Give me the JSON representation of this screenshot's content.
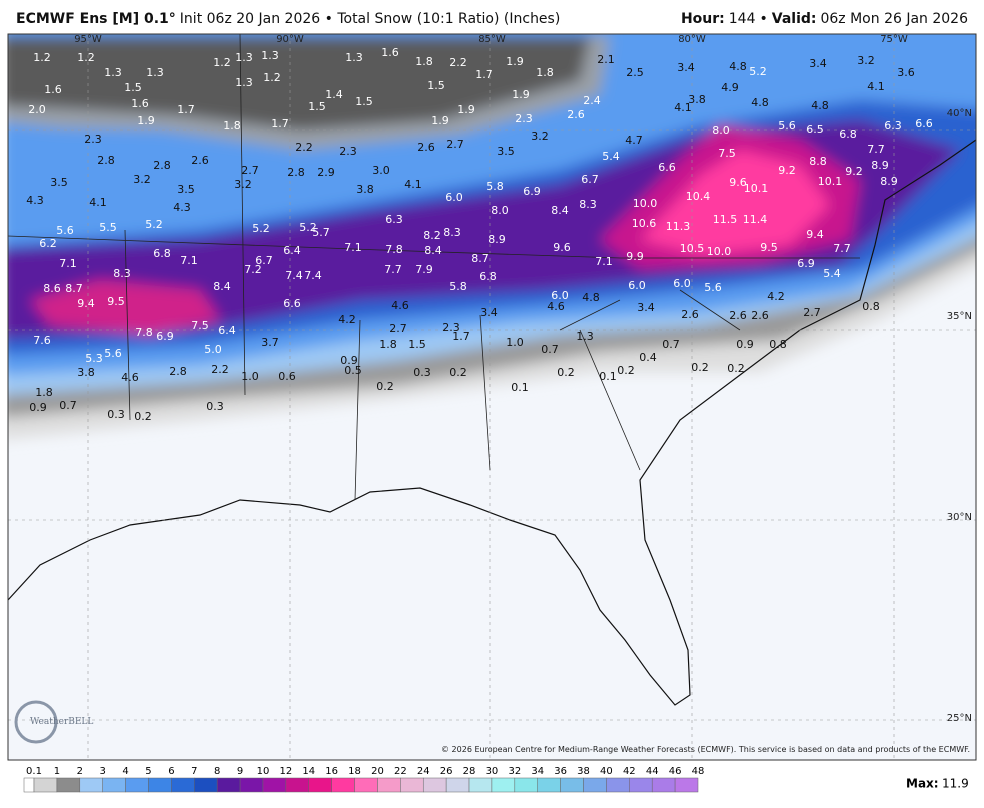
{
  "header": {
    "model": "ECMWF Ens [M] 0.1°",
    "subtitle": "Init 06z 20 Jan 2026 • Total Snow (10:1 Ratio) (Inches)",
    "hour_label": "Hour:",
    "hour": 144,
    "separator": "•",
    "valid_label": "Valid:",
    "valid": "06z Mon 26 Jan 2026"
  },
  "map": {
    "lon_labels": [
      "95°W",
      "90°W",
      "85°W",
      "80°W",
      "75°W"
    ],
    "lat_labels": [
      "40°N",
      "35°N",
      "30°N",
      "25°N"
    ],
    "point_values": [
      1.2,
      1.2,
      1.3,
      1.3,
      1.2,
      1.3,
      1.3,
      1.3,
      1.2,
      1.3,
      1.6,
      1.8,
      2.2,
      1.7,
      1.9,
      1.8,
      2.1,
      2.5,
      3.4,
      4.8,
      5.2,
      3.4,
      3.2,
      3.6,
      1.6,
      1.5,
      1.6,
      1.7,
      1.8,
      1.7,
      1.5,
      1.4,
      1.5,
      1.5,
      1.9,
      1.9,
      1.9,
      2.4,
      2.6,
      2.3,
      3.8,
      4.1,
      4.9,
      4.8,
      4.8,
      4.1,
      {
        "value": 2,
        "label": "2.0"
      },
      1.9,
      2.3,
      {
        "value": 8,
        "label": "8.0"
      },
      5.6,
      6.5,
      6.8,
      6.3,
      6.6,
      2.2,
      2.3,
      2.6,
      2.7,
      3.2,
      4.7,
      2.8,
      2.8,
      2.6,
      3.5,
      3.2,
      3.5,
      2.7,
      3.2,
      2.8,
      2.9,
      {
        "value": 3,
        "label": "3.0"
      },
      3.8,
      3.5,
      5.4,
      6.6,
      7.5,
      9.2,
      8.8,
      7.7,
      8.9,
      9.2,
      8.9,
      10.1,
      9.6,
      10.1,
      4.3,
      4.1,
      4.3,
      4.1,
      {
        "value": 6,
        "label": "6.0"
      },
      5.8,
      6.9,
      6.7,
      10.4,
      {
        "value": 10,
        "label": "10.0"
      },
      8.4,
      8.3,
      {
        "value": 8,
        "label": "8.0"
      },
      5.6,
      5.5,
      5.2,
      5.2,
      5.2,
      5.7,
      6.3,
      8.2,
      8.3,
      8.9,
      10.6,
      11.3,
      11.5,
      11.4,
      9.4,
      6.2,
      6.8,
      7.1,
      6.4,
      6.7,
      7.1,
      7.8,
      8.4,
      9.6,
      10.5,
      {
        "value": 10,
        "label": "10.0"
      },
      9.5,
      7.7,
      7.1,
      8.3,
      7.2,
      7.4,
      7.4,
      7.7,
      7.9,
      8.7,
      7.1,
      9.9,
      6.9,
      5.4,
      8.6,
      8.7,
      8.4,
      6.8,
      5.8,
      {
        "value": 6,
        "label": "6.0"
      },
      4.8,
      {
        "value": 6,
        "label": "6.0"
      },
      {
        "value": 6,
        "label": "6.0"
      },
      5.6,
      4.2,
      9.4,
      9.5,
      6.6,
      4.6,
      4.6,
      3.4,
      3.4,
      2.6,
      2.6,
      2.6,
      2.7,
      7.5,
      7.8,
      6.9,
      6.4,
      7.6,
      4.2,
      2.7,
      2.3,
      1.7,
      1.3,
      {
        "value": 5,
        "label": "5.0"
      },
      5.6,
      5.3,
      3.7,
      1.8,
      1.5,
      {
        "value": 1,
        "label": "1.0"
      },
      0.7,
      0.7,
      0.9,
      0.8,
      0.9,
      0.5,
      3.8,
      2.8,
      2.2,
      {
        "value": 1,
        "label": "1.0"
      },
      0.6,
      0.3,
      0.2,
      0.4,
      0.2,
      0.1,
      0.2,
      0.2,
      0.2,
      4.6,
      0.2,
      0.1,
      1.8,
      0.9,
      0.7,
      0.3,
      0.2,
      0.3,
      0.8
    ],
    "copyright": "© 2026 European Centre for Medium-Range Weather Forecasts (ECMWF). This service is based on data and products of the ECMWF.",
    "logo": "WeatherBELL"
  },
  "legend": {
    "levels": [
      0.1,
      1,
      2,
      3,
      4,
      5,
      6,
      7,
      8,
      9,
      10,
      12,
      14,
      16,
      18,
      20,
      22,
      24,
      26,
      28,
      30,
      32,
      34,
      36,
      38,
      40,
      42,
      44,
      46,
      48
    ],
    "colors": [
      "#d4d4d4",
      "#8c8c8c",
      "#9ec9f5",
      "#7ab4f2",
      "#5a9cf0",
      "#3d85e6",
      "#2a6ad6",
      "#1c4fc0",
      "#5a1a9e",
      "#7a16a8",
      "#a013a6",
      "#c8138e",
      "#e8158a",
      "#ff3aa0",
      "#ff6cb8",
      "#f59bc9",
      "#eab7d6",
      "#ddc7e0",
      "#cfd5ea",
      "#b6e7ef",
      "#9ef0f0",
      "#8ae6ea",
      "#7ad2e8",
      "#78bde8",
      "#7aa8ea",
      "#8a94ea",
      "#9a86ea",
      "#aa7ce8",
      "#bb78e8"
    ],
    "max_label": "Max:",
    "max": 11.9
  }
}
